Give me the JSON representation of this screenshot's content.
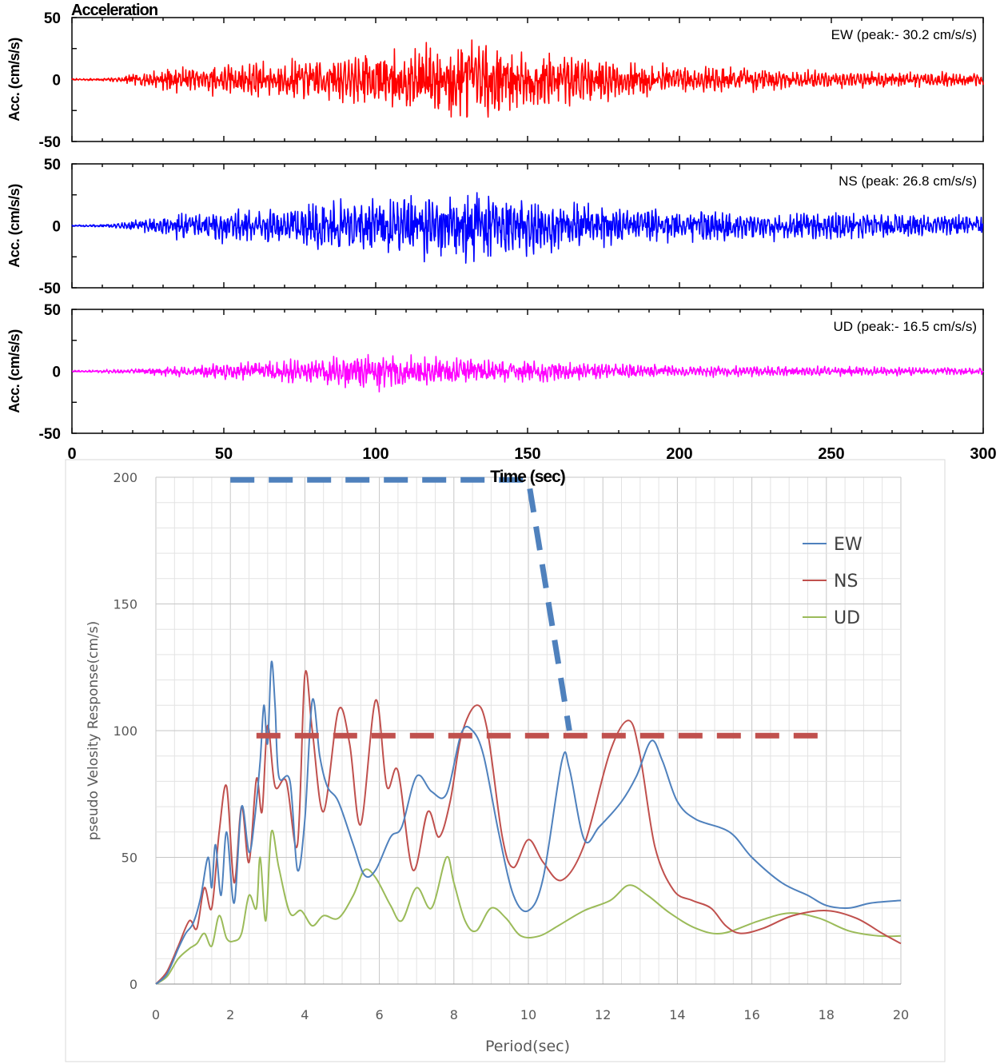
{
  "chart_data": [
    {
      "type": "line",
      "title": "Acceleration",
      "xlabel": "Time (sec)",
      "ylabel": "Acc. (cm/s/s)",
      "xlim": [
        0,
        300
      ],
      "ylim": [
        -50,
        50
      ],
      "x_ticks": [
        "0",
        "50",
        "100",
        "150",
        "200",
        "250",
        "300"
      ],
      "y_ticks": [
        "50",
        "0",
        "-50"
      ],
      "panels": [
        {
          "name": "EW",
          "label": "EW (peak:- 30.2 cm/s/s)",
          "peak": -30.2,
          "color": "#ff0000",
          "envelope": [
            [
              0,
              0.5
            ],
            [
              12,
              1
            ],
            [
              22,
              4
            ],
            [
              35,
              8
            ],
            [
              50,
              10
            ],
            [
              70,
              12
            ],
            [
              90,
              15
            ],
            [
              110,
              18
            ],
            [
              120,
              22
            ],
            [
              125,
              26
            ],
            [
              140,
              22
            ],
            [
              160,
              17
            ],
            [
              180,
              12
            ],
            [
              200,
              9
            ],
            [
              230,
              7
            ],
            [
              260,
              5
            ],
            [
              300,
              4
            ]
          ]
        },
        {
          "name": "NS",
          "label": "NS (peak: 26.8 cm/s/s)",
          "peak": 26.8,
          "color": "#0000ff",
          "envelope": [
            [
              0,
              0.5
            ],
            [
              12,
              1
            ],
            [
              22,
              4
            ],
            [
              35,
              8
            ],
            [
              50,
              10
            ],
            [
              70,
              12
            ],
            [
              90,
              16
            ],
            [
              110,
              18
            ],
            [
              120,
              23
            ],
            [
              130,
              24
            ],
            [
              150,
              17
            ],
            [
              180,
              12
            ],
            [
              200,
              10
            ],
            [
              230,
              9
            ],
            [
              260,
              8
            ],
            [
              300,
              7
            ]
          ]
        },
        {
          "name": "UD",
          "label": "UD (peak:- 16.5 cm/s/s)",
          "peak": -16.5,
          "color": "#ff00ff",
          "envelope": [
            [
              0,
              0.5
            ],
            [
              20,
              1.5
            ],
            [
              40,
              4
            ],
            [
              60,
              6
            ],
            [
              80,
              8
            ],
            [
              100,
              12
            ],
            [
              110,
              10
            ],
            [
              130,
              8
            ],
            [
              160,
              6
            ],
            [
              200,
              3.5
            ],
            [
              250,
              3
            ],
            [
              300,
              2
            ]
          ]
        }
      ]
    },
    {
      "type": "line",
      "title": "",
      "xlabel": "Period(sec)",
      "ylabel": "pseudo Velosity Response(cm/s)",
      "xlim": [
        0,
        20
      ],
      "ylim": [
        0,
        200
      ],
      "x_ticks": [
        "0",
        "2",
        "4",
        "6",
        "8",
        "10",
        "12",
        "14",
        "16",
        "18",
        "20"
      ],
      "y_ticks": [
        "0",
        "50",
        "100",
        "150",
        "200"
      ],
      "grid": true,
      "legend_position": "top-right",
      "series": [
        {
          "name": "EW",
          "color": "#4f81bd",
          "points": [
            [
              0,
              0
            ],
            [
              0.3,
              4
            ],
            [
              0.6,
              14
            ],
            [
              0.8,
              20
            ],
            [
              1.0,
              24
            ],
            [
              1.2,
              34
            ],
            [
              1.4,
              50
            ],
            [
              1.5,
              38
            ],
            [
              1.6,
              55
            ],
            [
              1.75,
              35
            ],
            [
              1.9,
              60
            ],
            [
              2.1,
              32
            ],
            [
              2.3,
              70
            ],
            [
              2.5,
              52
            ],
            [
              2.65,
              65
            ],
            [
              2.8,
              88
            ],
            [
              2.9,
              110
            ],
            [
              3.0,
              95
            ],
            [
              3.1,
              127
            ],
            [
              3.2,
              110
            ],
            [
              3.3,
              82
            ],
            [
              3.6,
              80
            ],
            [
              3.8,
              45
            ],
            [
              4.0,
              65
            ],
            [
              4.2,
              112
            ],
            [
              4.4,
              90
            ],
            [
              4.6,
              78
            ],
            [
              4.9,
              72
            ],
            [
              5.3,
              55
            ],
            [
              5.6,
              43
            ],
            [
              5.9,
              45
            ],
            [
              6.3,
              58
            ],
            [
              6.6,
              62
            ],
            [
              7.0,
              82
            ],
            [
              7.4,
              76
            ],
            [
              7.8,
              75
            ],
            [
              8.2,
              99
            ],
            [
              8.5,
              100
            ],
            [
              8.8,
              90
            ],
            [
              9.2,
              60
            ],
            [
              9.6,
              35
            ],
            [
              10.0,
              29
            ],
            [
              10.4,
              42
            ],
            [
              10.9,
              88
            ],
            [
              11.1,
              85
            ],
            [
              11.5,
              57
            ],
            [
              11.9,
              62
            ],
            [
              12.5,
              72
            ],
            [
              12.9,
              82
            ],
            [
              13.3,
              96
            ],
            [
              13.6,
              88
            ],
            [
              14.0,
              72
            ],
            [
              14.5,
              65
            ],
            [
              15.4,
              60
            ],
            [
              16.0,
              50
            ],
            [
              16.8,
              40
            ],
            [
              17.5,
              35
            ],
            [
              18.0,
              31
            ],
            [
              18.6,
              30
            ],
            [
              19.2,
              32
            ],
            [
              20.0,
              33
            ]
          ]
        },
        {
          "name": "NS",
          "color": "#c0504d",
          "points": [
            [
              0,
              0
            ],
            [
              0.3,
              5
            ],
            [
              0.6,
              15
            ],
            [
              0.9,
              25
            ],
            [
              1.1,
              22
            ],
            [
              1.3,
              38
            ],
            [
              1.5,
              30
            ],
            [
              1.7,
              60
            ],
            [
              1.9,
              78
            ],
            [
              2.1,
              40
            ],
            [
              2.3,
              70
            ],
            [
              2.5,
              48
            ],
            [
              2.7,
              81
            ],
            [
              2.85,
              68
            ],
            [
              3.0,
              102
            ],
            [
              3.2,
              78
            ],
            [
              3.5,
              80
            ],
            [
              3.8,
              55
            ],
            [
              4.0,
              122
            ],
            [
              4.2,
              100
            ],
            [
              4.5,
              68
            ],
            [
              4.9,
              108
            ],
            [
              5.2,
              95
            ],
            [
              5.5,
              63
            ],
            [
              5.9,
              112
            ],
            [
              6.2,
              78
            ],
            [
              6.5,
              84
            ],
            [
              6.9,
              45
            ],
            [
              7.3,
              68
            ],
            [
              7.6,
              58
            ],
            [
              7.9,
              72
            ],
            [
              8.2,
              98
            ],
            [
              8.6,
              110
            ],
            [
              8.9,
              100
            ],
            [
              9.3,
              58
            ],
            [
              9.6,
              46
            ],
            [
              10.0,
              57
            ],
            [
              10.4,
              48
            ],
            [
              10.9,
              41
            ],
            [
              11.5,
              55
            ],
            [
              12.2,
              92
            ],
            [
              12.7,
              104
            ],
            [
              13.0,
              90
            ],
            [
              13.4,
              54
            ],
            [
              13.9,
              37
            ],
            [
              14.4,
              33
            ],
            [
              14.9,
              30
            ],
            [
              15.3,
              23
            ],
            [
              15.7,
              20
            ],
            [
              16.3,
              22
            ],
            [
              17.1,
              27
            ],
            [
              18.0,
              29
            ],
            [
              18.8,
              26
            ],
            [
              19.5,
              20
            ],
            [
              20.0,
              16
            ]
          ]
        },
        {
          "name": "UD",
          "color": "#9bbb59",
          "points": [
            [
              0,
              0
            ],
            [
              0.3,
              3
            ],
            [
              0.6,
              10
            ],
            [
              0.9,
              14
            ],
            [
              1.1,
              16
            ],
            [
              1.3,
              20
            ],
            [
              1.5,
              15
            ],
            [
              1.7,
              27
            ],
            [
              1.9,
              18
            ],
            [
              2.1,
              17
            ],
            [
              2.3,
              20
            ],
            [
              2.5,
              35
            ],
            [
              2.7,
              30
            ],
            [
              2.8,
              50
            ],
            [
              2.95,
              25
            ],
            [
              3.1,
              60
            ],
            [
              3.3,
              46
            ],
            [
              3.6,
              28
            ],
            [
              3.9,
              29
            ],
            [
              4.2,
              23
            ],
            [
              4.5,
              27
            ],
            [
              4.9,
              26
            ],
            [
              5.3,
              35
            ],
            [
              5.6,
              45
            ],
            [
              5.9,
              42
            ],
            [
              6.3,
              31
            ],
            [
              6.6,
              25
            ],
            [
              7.0,
              38
            ],
            [
              7.4,
              30
            ],
            [
              7.8,
              50
            ],
            [
              8.0,
              40
            ],
            [
              8.3,
              25
            ],
            [
              8.6,
              21
            ],
            [
              9.0,
              30
            ],
            [
              9.4,
              26
            ],
            [
              9.8,
              19
            ],
            [
              10.3,
              19
            ],
            [
              10.8,
              23
            ],
            [
              11.5,
              29
            ],
            [
              12.2,
              33
            ],
            [
              12.7,
              39
            ],
            [
              13.2,
              35
            ],
            [
              13.8,
              28
            ],
            [
              14.5,
              22
            ],
            [
              15.2,
              20
            ],
            [
              16.2,
              25
            ],
            [
              17.0,
              28
            ],
            [
              17.8,
              26
            ],
            [
              18.6,
              21
            ],
            [
              19.4,
              19
            ],
            [
              20.0,
              19
            ]
          ]
        }
      ],
      "reference_lines": [
        {
          "color": "#4f81bd",
          "dash": "dashed",
          "points": [
            [
              2,
              199
            ],
            [
              10,
              199
            ],
            [
              11.1,
              100
            ]
          ]
        },
        {
          "color": "#c0504d",
          "dash": "dashed",
          "points": [
            [
              2.7,
              98
            ],
            [
              17.8,
              98
            ]
          ]
        }
      ]
    }
  ]
}
